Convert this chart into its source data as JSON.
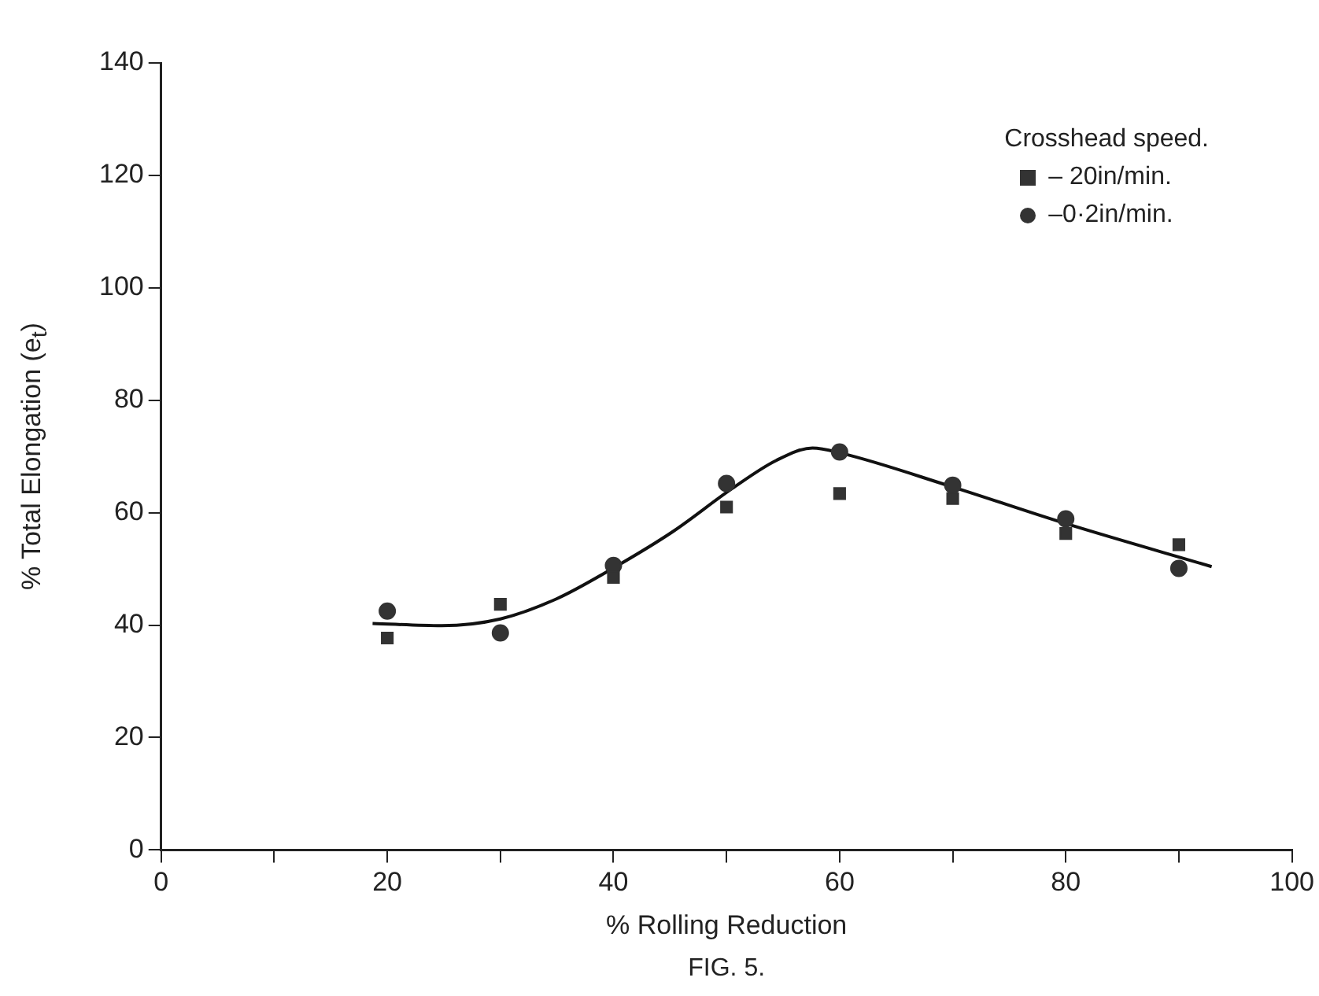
{
  "chart_data": {
    "type": "scatter",
    "xlabel": "% Rolling Reduction",
    "ylabel": "% Total Elongation (e$_{t}$)",
    "legend_title": "Crosshead speed.",
    "annotations": [
      "FIG. 5."
    ],
    "xlim": [
      0,
      100
    ],
    "xticks": [
      0,
      {
        "value": 10,
        "label": null
      },
      20,
      {
        "value": 30,
        "label": null
      },
      40,
      {
        "value": 50,
        "label": null
      },
      60,
      {
        "value": 70,
        "label": null
      },
      80,
      {
        "value": 90,
        "label": null
      },
      100
    ],
    "ylim": [
      0,
      140
    ],
    "yticks": [
      0,
      20,
      40,
      60,
      80,
      100,
      120,
      140
    ],
    "grid": false,
    "legend": "top right",
    "series": [
      {
        "name": "– 20in/min.",
        "color": "#333333",
        "marker": "square",
        "x": [
          20,
          30,
          40,
          50,
          60,
          70,
          80,
          90
        ],
        "values": [
          37.7,
          43.7,
          48.5,
          61,
          63.4,
          62.5,
          56.3,
          54.3
        ]
      },
      {
        "name": "–0·2in/min.",
        "color": "#333333",
        "marker": "circle",
        "x": [
          20,
          30,
          40,
          50,
          60,
          70,
          80,
          90
        ],
        "values": [
          42.5,
          38.6,
          50.6,
          65.2,
          70.8,
          64.9,
          58.9,
          50.1
        ]
      },
      {
        "type": "line",
        "color": "#111111",
        "marker": "none",
        "x": [
          18.7,
          24.8,
          30,
          35,
          40.2,
          45.3,
          50.5,
          54.4,
          57.6,
          60.1,
          69.8,
          80.1,
          92.9
        ],
        "values": [
          40.3,
          39.9,
          41.1,
          44.7,
          50.4,
          56.7,
          64.3,
          69.3,
          71.5,
          70.6,
          64.7,
          58,
          50.4
        ]
      }
    ]
  }
}
